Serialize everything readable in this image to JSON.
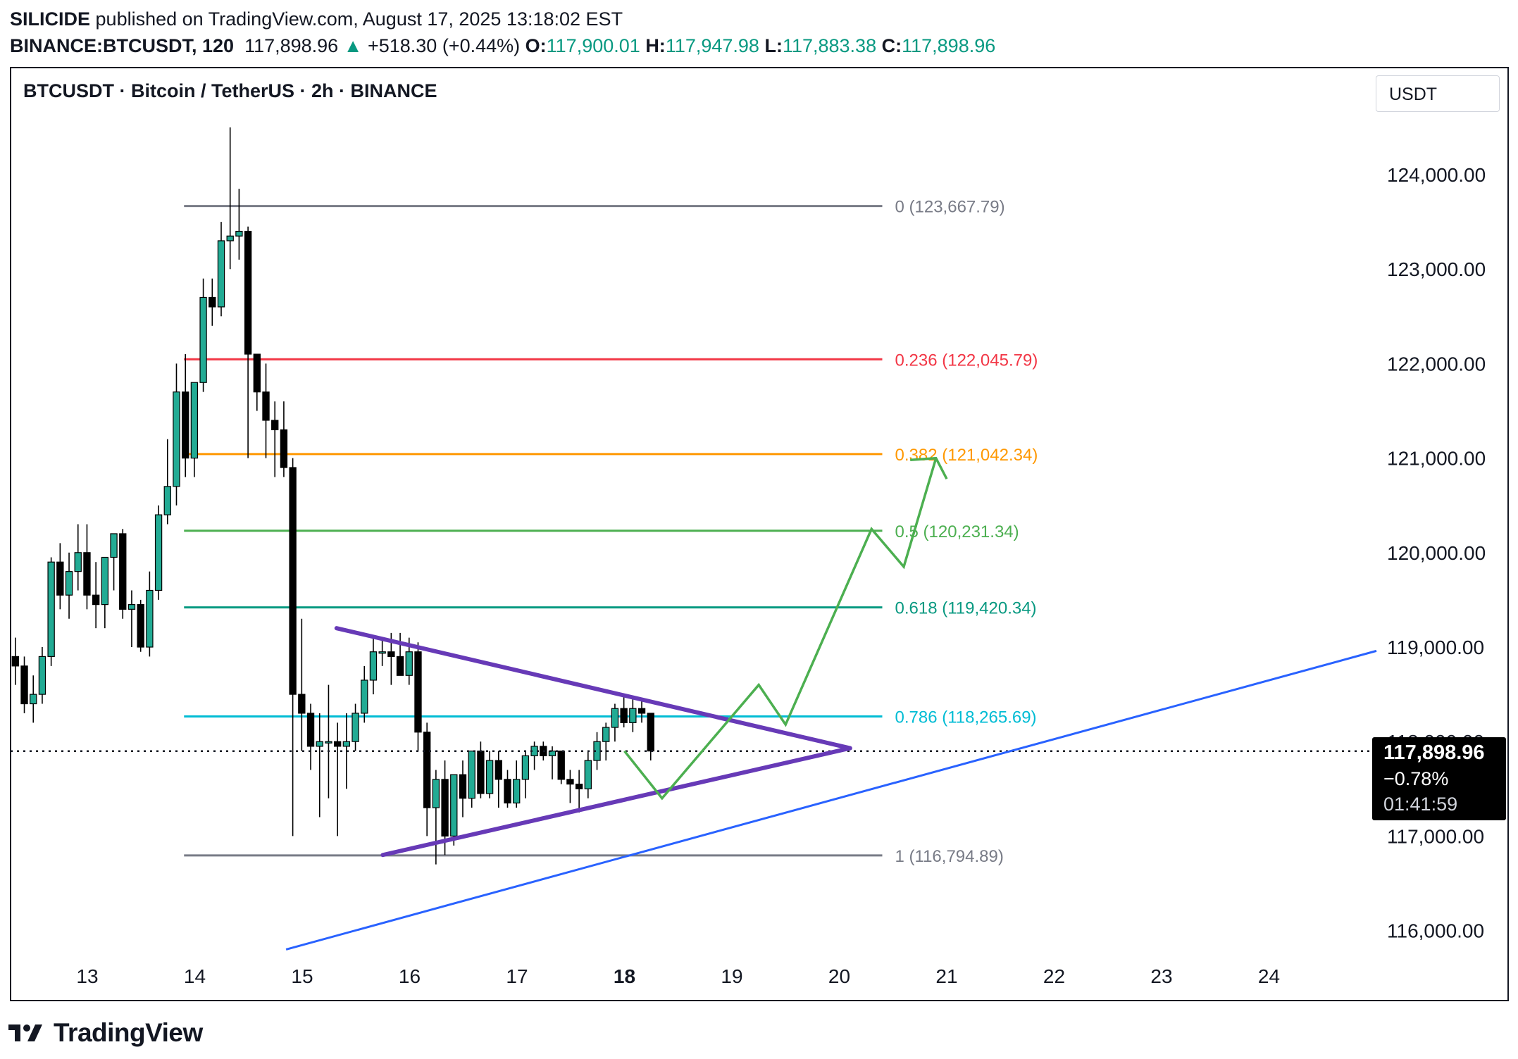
{
  "header": {
    "publisher": "SILICIDE",
    "published_text": "published on TradingView.com, August 17, 2025 13:18:02 EST",
    "symbol_interval": "BINANCE:BTCUSDT, 120",
    "last_price": "117,898.96",
    "change": "+518.30 (+0.44%)",
    "open_label": "O:",
    "open": "117,900.01",
    "high_label": "H:",
    "high": "117,947.98",
    "low_label": "L:",
    "low": "117,883.38",
    "close_label": "C:",
    "close": "117,898.96"
  },
  "chart_title": "BTCUSDT · Bitcoin / TetherUS · 2h · BINANCE",
  "currency_button": "USDT",
  "price_box": {
    "price": "117,898.96",
    "change": "−0.78%",
    "countdown": "01:41:59"
  },
  "brand": "TradingView",
  "colors": {
    "up": "#22ab94",
    "down": "#000000",
    "fib0": "#787b86",
    "fib236": "#f23645",
    "fib382": "#ff9800",
    "fib5": "#4caf50",
    "fib618": "#089981",
    "fib786": "#00bcd4",
    "fib1": "#787b86",
    "triangle": "#673ab7",
    "trendline": "#2962ff",
    "projection": "#4caf50"
  },
  "chart_data": {
    "type": "candlestick",
    "title": "BTCUSDT · Bitcoin / TetherUS · 2h · BINANCE",
    "ylim": [
      115800,
      124900
    ],
    "y_ticks": [
      "124,000.00",
      "123,000.00",
      "122,000.00",
      "121,000.00",
      "120,000.00",
      "119,000.00",
      "118,000.00",
      "117,000.00",
      "116,000.00"
    ],
    "y_tick_values": [
      124000,
      123000,
      122000,
      121000,
      120000,
      119000,
      118000,
      117000,
      116000
    ],
    "x_range_days": [
      12.3,
      25.1
    ],
    "x_ticks": [
      {
        "label": "13",
        "day": 13
      },
      {
        "label": "14",
        "day": 14
      },
      {
        "label": "15",
        "day": 15
      },
      {
        "label": "16",
        "day": 16
      },
      {
        "label": "17",
        "day": 17
      },
      {
        "label": "18",
        "day": 18,
        "bold": true
      },
      {
        "label": "19",
        "day": 19
      },
      {
        "label": "20",
        "day": 20
      },
      {
        "label": "21",
        "day": 21
      },
      {
        "label": "22",
        "day": 22
      },
      {
        "label": "23",
        "day": 23
      },
      {
        "label": "24",
        "day": 24
      }
    ],
    "ohlc_start_day": 12.33,
    "bar_days": 0.0833,
    "ohlc": [
      [
        118900,
        119100,
        118600,
        118800
      ],
      [
        118800,
        118900,
        118300,
        118400
      ],
      [
        118400,
        118700,
        118200,
        118500
      ],
      [
        118500,
        119000,
        118400,
        118900
      ],
      [
        118900,
        119950,
        118800,
        119900
      ],
      [
        119900,
        120100,
        119400,
        119550
      ],
      [
        119550,
        120000,
        119300,
        119800
      ],
      [
        119800,
        120300,
        119600,
        120000
      ],
      [
        120000,
        120300,
        119400,
        119550
      ],
      [
        119550,
        119900,
        119200,
        119450
      ],
      [
        119450,
        119900,
        119200,
        119950
      ],
      [
        119950,
        120200,
        119600,
        120200
      ],
      [
        120200,
        120250,
        119300,
        119400
      ],
      [
        119400,
        119600,
        119000,
        119450
      ],
      [
        119450,
        119500,
        118950,
        119000
      ],
      [
        119000,
        119800,
        118900,
        119600
      ],
      [
        119600,
        120500,
        119500,
        120400
      ],
      [
        120400,
        121200,
        120300,
        120700
      ],
      [
        120700,
        122000,
        120500,
        121700
      ],
      [
        121700,
        122100,
        120800,
        121000
      ],
      [
        121000,
        121800,
        120800,
        121800
      ],
      [
        121800,
        122900,
        121700,
        122700
      ],
      [
        122700,
        122900,
        122400,
        122600
      ],
      [
        122600,
        123500,
        122500,
        123300
      ],
      [
        123300,
        124500,
        123000,
        123350
      ],
      [
        123350,
        123850,
        123100,
        123400
      ],
      [
        123400,
        123450,
        121000,
        122100
      ],
      [
        122100,
        122100,
        121500,
        121700
      ],
      [
        121700,
        122000,
        121000,
        121400
      ],
      [
        121400,
        121600,
        120800,
        121300
      ],
      [
        121300,
        121600,
        120800,
        120900
      ],
      [
        120900,
        121000,
        117000,
        118500
      ],
      [
        118500,
        119300,
        117900,
        118300
      ],
      [
        118300,
        118400,
        117700,
        117950
      ],
      [
        117950,
        118300,
        117200,
        118000
      ],
      [
        118000,
        118600,
        117400,
        118000
      ],
      [
        118000,
        118200,
        117000,
        117950
      ],
      [
        117950,
        118300,
        117500,
        118000
      ],
      [
        118000,
        118400,
        117900,
        118300
      ],
      [
        118300,
        118800,
        118200,
        118650
      ],
      [
        118650,
        119100,
        118500,
        118950
      ],
      [
        118950,
        119100,
        118800,
        118950
      ],
      [
        118950,
        119150,
        118600,
        118900
      ],
      [
        118900,
        119150,
        118700,
        118700
      ],
      [
        118700,
        119100,
        118600,
        118950
      ],
      [
        118950,
        119050,
        117900,
        118100
      ],
      [
        118100,
        118200,
        117000,
        117300
      ],
      [
        117300,
        117700,
        116700,
        117600
      ],
      [
        117600,
        117800,
        116800,
        117000
      ],
      [
        117000,
        117650,
        116900,
        117650
      ],
      [
        117650,
        117800,
        117200,
        117400
      ],
      [
        117400,
        117900,
        117300,
        117900
      ],
      [
        117900,
        118000,
        117400,
        117450
      ],
      [
        117450,
        117900,
        117400,
        117800
      ],
      [
        117800,
        117900,
        117300,
        117600
      ],
      [
        117600,
        117700,
        117300,
        117350
      ],
      [
        117350,
        117800,
        117300,
        117600
      ],
      [
        117600,
        117900,
        117400,
        117850
      ],
      [
        117850,
        118000,
        117700,
        117950
      ],
      [
        117950,
        118000,
        117800,
        117850
      ],
      [
        117850,
        117950,
        117600,
        117900
      ],
      [
        117900,
        117900,
        117550,
        117600
      ],
      [
        117600,
        117700,
        117350,
        117550
      ],
      [
        117550,
        117700,
        117250,
        117500
      ],
      [
        117500,
        117900,
        117400,
        117800
      ],
      [
        117800,
        118100,
        117700,
        118000
      ],
      [
        118000,
        118200,
        117800,
        118150
      ],
      [
        118150,
        118400,
        118000,
        118350
      ],
      [
        118350,
        118500,
        118150,
        118200
      ],
      [
        118200,
        118450,
        118100,
        118350
      ],
      [
        118350,
        118450,
        118200,
        118300
      ],
      [
        118300,
        118300,
        117800,
        117900
      ]
    ],
    "fibonacci_levels": [
      {
        "ratio": "0",
        "price": 123667.79,
        "label": "0 (123,667.79)",
        "color": "#787b86"
      },
      {
        "ratio": "0.236",
        "price": 122045.79,
        "label": "0.236 (122,045.79)",
        "color": "#f23645"
      },
      {
        "ratio": "0.382",
        "price": 121042.34,
        "label": "0.382 (121,042.34)",
        "color": "#ff9800"
      },
      {
        "ratio": "0.5",
        "price": 120231.34,
        "label": "0.5 (120,231.34)",
        "color": "#4caf50"
      },
      {
        "ratio": "0.618",
        "price": 119420.34,
        "label": "0.618 (119,420.34)",
        "color": "#089981"
      },
      {
        "ratio": "0.786",
        "price": 118265.69,
        "label": "0.786 (118,265.69)",
        "color": "#00bcd4"
      },
      {
        "ratio": "1",
        "price": 116794.89,
        "label": "1 (116,794.89)",
        "color": "#787b86"
      }
    ],
    "fib_start_day": 13.9,
    "fib_end_day": 20.4,
    "current_price": 117898.96,
    "triangle_upper": [
      [
        15.32,
        119200
      ],
      [
        20.1,
        117930
      ]
    ],
    "triangle_lower": [
      [
        15.75,
        116800
      ],
      [
        20.1,
        117930
      ]
    ],
    "trendline": [
      [
        14.85,
        115800
      ],
      [
        25.0,
        118960
      ]
    ],
    "projection_path": [
      [
        18.0,
        117900
      ],
      [
        18.35,
        117400
      ],
      [
        19.25,
        118600
      ],
      [
        19.5,
        118180
      ],
      [
        20.3,
        120250
      ],
      [
        20.6,
        119850
      ],
      [
        20.9,
        120999
      ]
    ],
    "projection_arrow": [
      [
        20.66,
        120980
      ],
      [
        20.9,
        120999
      ],
      [
        21.0,
        120780
      ]
    ]
  }
}
